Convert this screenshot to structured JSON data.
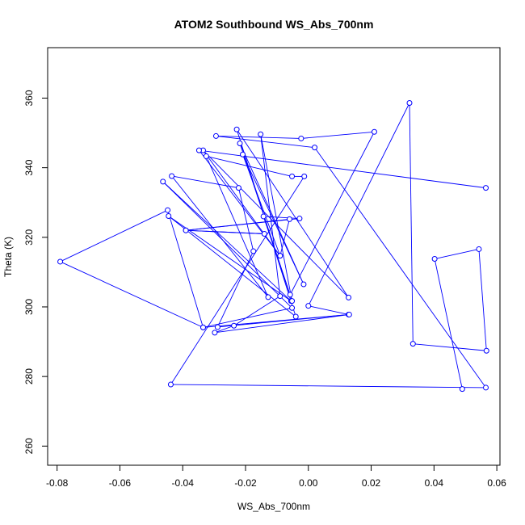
{
  "chart_data": {
    "type": "line",
    "title": "ATOM2 Southbound WS_Abs_700nm",
    "xlabel": "WS_Abs_700nm",
    "ylabel": "Theta (K)",
    "xlim": [
      -0.083,
      0.061
    ],
    "ylim": [
      254.5,
      374.5
    ],
    "xticks": [
      -0.08,
      -0.06,
      -0.04,
      -0.02,
      0.0,
      0.02,
      0.04,
      0.06
    ],
    "xtick_labels": [
      "-0.08",
      "-0.06",
      "-0.04",
      "-0.02",
      "0.00",
      "0.02",
      "0.04",
      "0.06"
    ],
    "yticks": [
      260,
      280,
      300,
      320,
      340,
      360
    ],
    "ytick_labels": [
      "260",
      "280",
      "300",
      "320",
      "340",
      "360"
    ],
    "grid": false,
    "legend": "none",
    "series": [
      {
        "color": "#0000ff",
        "marker": "open-circle",
        "points": [
          {
            "x": 0.049,
            "y": 276.4
          },
          {
            "x": 0.0402,
            "y": 313.8
          },
          {
            "x": 0.0543,
            "y": 316.6
          },
          {
            "x": 0.0567,
            "y": 287.4
          },
          {
            "x": 0.0333,
            "y": 289.4
          },
          {
            "x": 0.0322,
            "y": 358.6
          },
          {
            "x": 0.0,
            "y": 300.3
          },
          {
            "x": 0.0128,
            "y": 297.8
          },
          {
            "x": -0.0289,
            "y": 294.2
          },
          {
            "x": -0.0175,
            "y": 316.0
          },
          {
            "x": -0.0222,
            "y": 334.2
          },
          {
            "x": -0.0435,
            "y": 337.6
          },
          {
            "x": -0.0128,
            "y": 302.8
          },
          {
            "x": -0.0325,
            "y": 343.3
          },
          {
            "x": -0.0052,
            "y": 337.5
          },
          {
            "x": -0.0013,
            "y": 337.5
          },
          {
            "x": -0.0438,
            "y": 277.7
          },
          {
            "x": 0.0565,
            "y": 276.8
          },
          {
            "x": 0.002,
            "y": 345.8
          },
          {
            "x": -0.0294,
            "y": 349.1
          },
          {
            "x": -0.0023,
            "y": 348.4
          },
          {
            "x": 0.021,
            "y": 350.3
          },
          {
            "x": -0.0058,
            "y": 303.5
          },
          {
            "x": -0.0218,
            "y": 347.0
          },
          {
            "x": -0.0015,
            "y": 306.5
          },
          {
            "x": -0.0209,
            "y": 343.8
          },
          {
            "x": -0.009,
            "y": 314.7
          },
          {
            "x": -0.0335,
            "y": 345.0
          },
          {
            "x": 0.0128,
            "y": 302.7
          },
          {
            "x": -0.0228,
            "y": 351.0
          },
          {
            "x": -0.004,
            "y": 297.2
          },
          {
            "x": -0.0445,
            "y": 326.1
          },
          {
            "x": -0.0055,
            "y": 301.7
          },
          {
            "x": -0.0463,
            "y": 336.0
          },
          {
            "x": -0.0052,
            "y": 299.7
          },
          {
            "x": -0.0335,
            "y": 294.1
          },
          {
            "x": -0.0448,
            "y": 327.8
          },
          {
            "x": -0.079,
            "y": 313.0
          },
          {
            "x": -0.0335,
            "y": 294.1
          },
          {
            "x": 0.013,
            "y": 297.8
          },
          {
            "x": -0.0298,
            "y": 292.6
          },
          {
            "x": -0.0237,
            "y": 294.6
          },
          {
            "x": -0.009,
            "y": 303.1
          },
          {
            "x": -0.0152,
            "y": 349.6
          },
          {
            "x": -0.0052,
            "y": 301.7
          },
          {
            "x": -0.0143,
            "y": 326.0
          },
          {
            "x": -0.0028,
            "y": 325.4
          },
          {
            "x": -0.039,
            "y": 322.0
          },
          {
            "x": -0.014,
            "y": 321.0
          },
          {
            "x": -0.039,
            "y": 322.0
          },
          {
            "x": -0.006,
            "y": 325.2
          },
          {
            "x": -0.009,
            "y": 314.7
          },
          {
            "x": -0.0348,
            "y": 345.0
          },
          {
            "x": 0.0565,
            "y": 334.2
          }
        ]
      }
    ]
  }
}
